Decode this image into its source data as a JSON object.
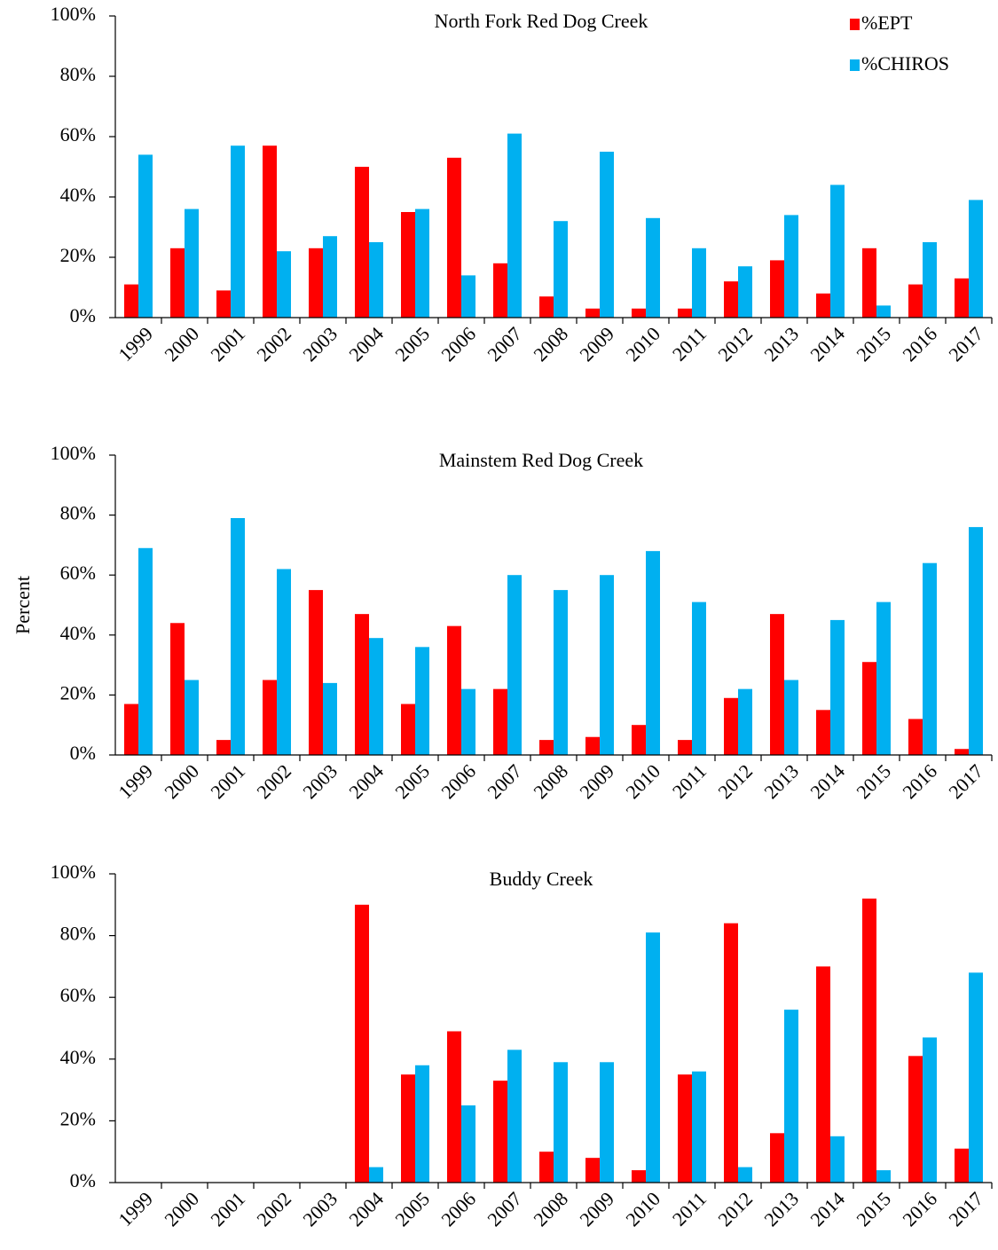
{
  "chart_data": [
    {
      "type": "bar",
      "title": "North Fork Red Dog Creek",
      "legend": "top-right",
      "categories": [
        "1999",
        "2000",
        "2001",
        "2002",
        "2003",
        "2004",
        "2005",
        "2006",
        "2007",
        "2008",
        "2009",
        "2010",
        "2011",
        "2012",
        "2013",
        "2014",
        "2015",
        "2016",
        "2017"
      ],
      "series": [
        {
          "name": "%EPT",
          "color": "#ff0000",
          "values": [
            11,
            23,
            9,
            57,
            23,
            50,
            35,
            53,
            18,
            7,
            3,
            3,
            3,
            12,
            19,
            8,
            23,
            11,
            13
          ]
        },
        {
          "name": "%CHIROS",
          "color": "#00b0f0",
          "values": [
            54,
            36,
            57,
            22,
            27,
            25,
            36,
            14,
            61,
            32,
            55,
            33,
            23,
            17,
            34,
            44,
            4,
            25,
            39
          ]
        }
      ],
      "ylim": [
        0,
        100
      ],
      "yticks": [
        {
          "value": 0,
          "label": "0%"
        },
        {
          "value": 20,
          "label": "20%"
        },
        {
          "value": 40,
          "label": "40%"
        },
        {
          "value": 60,
          "label": "60%"
        },
        {
          "value": 80,
          "label": "80%"
        },
        {
          "value": 100,
          "label": "100%"
        }
      ]
    },
    {
      "type": "bar",
      "title": "Mainstem Red Dog Creek",
      "ylabel": "Percent",
      "categories": [
        "1999",
        "2000",
        "2001",
        "2002",
        "2003",
        "2004",
        "2005",
        "2006",
        "2007",
        "2008",
        "2009",
        "2010",
        "2011",
        "2012",
        "2013",
        "2014",
        "2015",
        "2016",
        "2017"
      ],
      "series": [
        {
          "name": "%EPT",
          "color": "#ff0000",
          "values": [
            17,
            44,
            5,
            25,
            55,
            47,
            17,
            43,
            22,
            5,
            6,
            10,
            5,
            19,
            47,
            15,
            31,
            12,
            2
          ]
        },
        {
          "name": "%CHIROS",
          "color": "#00b0f0",
          "values": [
            69,
            25,
            79,
            62,
            24,
            39,
            36,
            22,
            60,
            55,
            60,
            68,
            51,
            22,
            25,
            45,
            51,
            64,
            76
          ]
        }
      ],
      "ylim": [
        0,
        100
      ],
      "yticks": [
        {
          "value": 0,
          "label": "0%"
        },
        {
          "value": 20,
          "label": "20%"
        },
        {
          "value": 40,
          "label": "40%"
        },
        {
          "value": 60,
          "label": "60%"
        },
        {
          "value": 80,
          "label": "80%"
        },
        {
          "value": 100,
          "label": "100%"
        }
      ]
    },
    {
      "type": "bar",
      "title": "Buddy Creek",
      "categories": [
        "1999",
        "2000",
        "2001",
        "2002",
        "2003",
        "2004",
        "2005",
        "2006",
        "2007",
        "2008",
        "2009",
        "2010",
        "2011",
        "2012",
        "2013",
        "2014",
        "2015",
        "2016",
        "2017"
      ],
      "series": [
        {
          "name": "%EPT",
          "color": "#ff0000",
          "values": [
            null,
            null,
            null,
            null,
            null,
            90,
            35,
            49,
            33,
            10,
            8,
            4,
            35,
            84,
            16,
            70,
            92,
            41,
            11
          ]
        },
        {
          "name": "%CHIROS",
          "color": "#00b0f0",
          "values": [
            null,
            null,
            null,
            null,
            null,
            5,
            38,
            25,
            43,
            39,
            39,
            81,
            36,
            5,
            56,
            15,
            4,
            47,
            68
          ]
        }
      ],
      "ylim": [
        0,
        100
      ],
      "yticks": [
        {
          "value": 0,
          "label": "0%"
        },
        {
          "value": 20,
          "label": "20%"
        },
        {
          "value": 40,
          "label": "40%"
        },
        {
          "value": 60,
          "label": "60%"
        },
        {
          "value": 80,
          "label": "80%"
        },
        {
          "value": 100,
          "label": "100%"
        }
      ]
    }
  ]
}
